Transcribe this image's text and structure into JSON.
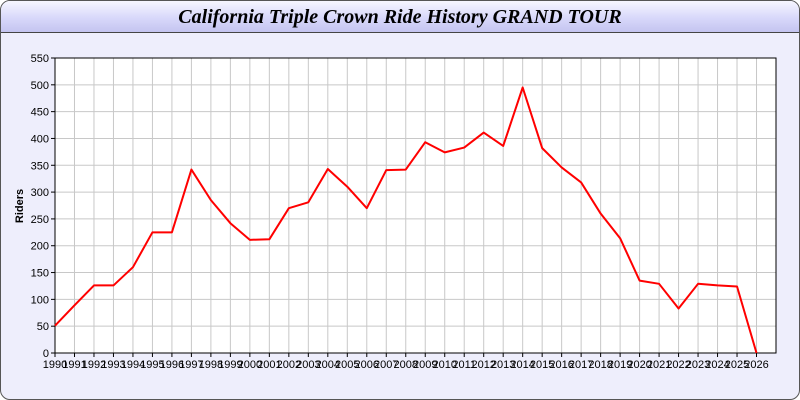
{
  "chart_data": {
    "type": "line",
    "title": "California Triple Crown Ride History GRAND TOUR",
    "xlabel": "",
    "ylabel": "Riders",
    "xlim": [
      1990,
      2027
    ],
    "ylim": [
      0,
      550
    ],
    "ytick_step": 50,
    "grid": true,
    "line_color": "#ff0000",
    "x": [
      1990,
      1991,
      1992,
      1993,
      1994,
      1995,
      1996,
      1997,
      1998,
      1999,
      2000,
      2001,
      2002,
      2003,
      2004,
      2005,
      2006,
      2007,
      2008,
      2009,
      2010,
      2011,
      2012,
      2013,
      2014,
      2015,
      2016,
      2017,
      2018,
      2019,
      2020,
      2021,
      2022,
      2023,
      2024,
      2025,
      2026
    ],
    "values": [
      51,
      89,
      126,
      126,
      160,
      225,
      225,
      342,
      285,
      242,
      211,
      212,
      270,
      281,
      343,
      310,
      270,
      341,
      342,
      393,
      374,
      383,
      411,
      386,
      495,
      382,
      346,
      318,
      260,
      214,
      135,
      129,
      83,
      129,
      126,
      124,
      0
    ]
  }
}
